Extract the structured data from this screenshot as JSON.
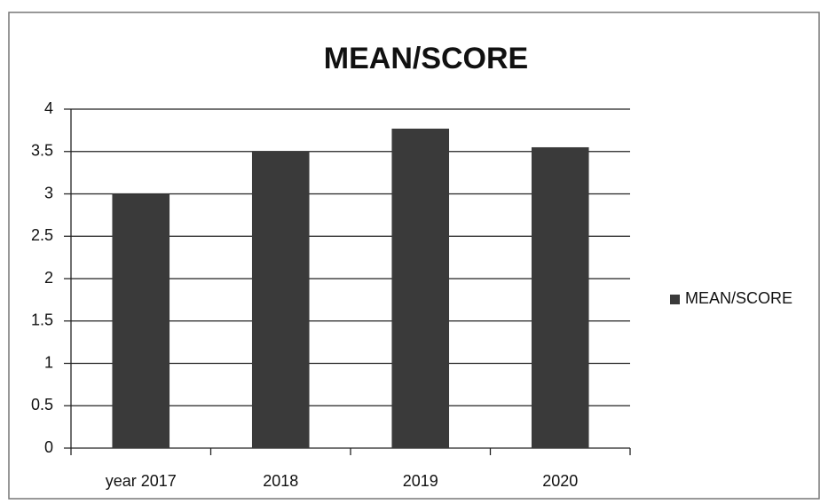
{
  "chart_data": {
    "type": "bar",
    "title": "MEAN/SCORE",
    "categories": [
      "year 2017",
      "2018",
      "2019",
      "2020"
    ],
    "series": [
      {
        "name": "MEAN/SCORE",
        "color": "#3a3a3a",
        "values": [
          3.0,
          3.5,
          3.77,
          3.55
        ]
      }
    ],
    "ylim": [
      0,
      4
    ],
    "yticks": [
      0,
      0.5,
      1,
      1.5,
      2,
      2.5,
      3,
      3.5,
      4
    ],
    "grid": true,
    "legend": "right"
  }
}
